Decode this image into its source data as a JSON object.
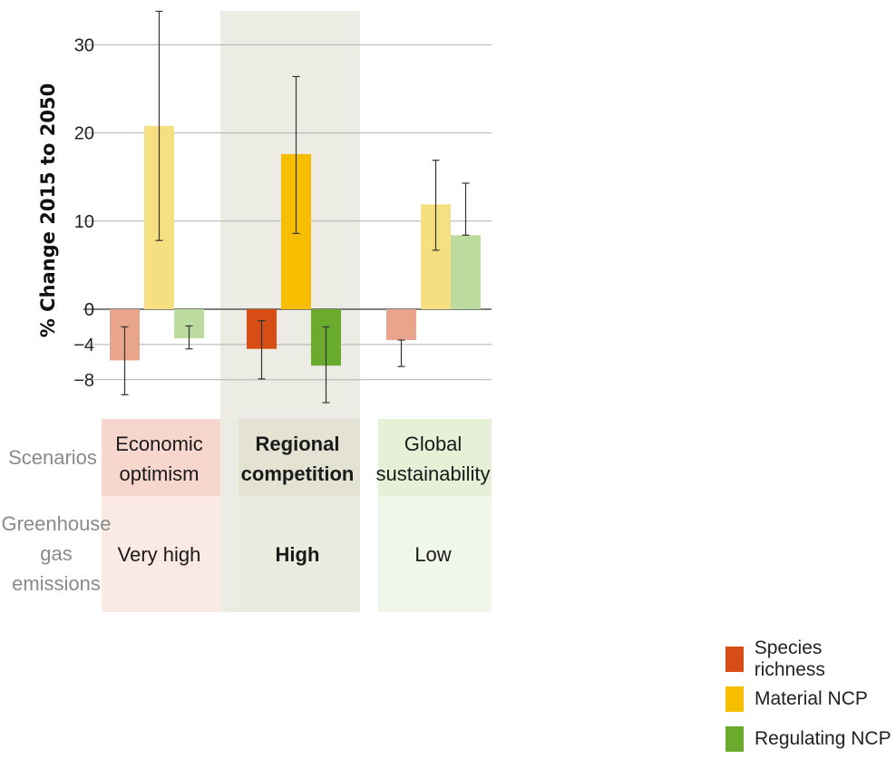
{
  "chart_data": {
    "type": "bar",
    "ylabel": "% Change 2015 to 2050",
    "ylim": [
      -11,
      35
    ],
    "yticks": [
      30,
      20,
      10,
      0,
      -4,
      -8
    ],
    "grid": true,
    "scenarios": [
      "Economic optimism",
      "Regional competition",
      "Global sustainability"
    ],
    "highlighted_scenario": "Regional competition",
    "row_labels": {
      "scenarios": "Scenarios",
      "emissions": "Greenhouse gas emissions"
    },
    "scenario_lines": [
      [
        "Economic",
        "optimism"
      ],
      [
        "Regional",
        "competition"
      ],
      [
        "Global",
        "sustainability"
      ]
    ],
    "emissions_row_lines": [
      "Greenhouse",
      "gas",
      "emissions"
    ],
    "emissions": [
      "Very high",
      "High",
      "Low"
    ],
    "series": [
      {
        "name": "Species richness",
        "color": "#d64d16",
        "light_color": "#e9a58c",
        "values": [
          -5.8,
          -4.5,
          -3.5
        ],
        "err_low": [
          -9.7,
          -7.9,
          -6.5
        ],
        "err_high": [
          -2.0,
          -1.3,
          -3.5
        ]
      },
      {
        "name": "Material NCP",
        "color": "#f7bd00",
        "light_color": "#f6df80",
        "values": [
          20.8,
          17.6,
          11.9
        ],
        "err_low": [
          7.8,
          8.6,
          6.7
        ],
        "err_high": [
          33.8,
          26.4,
          16.9
        ]
      },
      {
        "name": "Regulating NCP",
        "color": "#6aab2e",
        "light_color": "#bcdb9f",
        "values": [
          -3.3,
          -6.4,
          8.4
        ],
        "err_low": [
          -4.5,
          -10.6,
          8.4
        ],
        "err_high": [
          -1.9,
          -2.0,
          14.3
        ]
      }
    ],
    "colors": {
      "highlight_band": "#ecece4",
      "scenario_bg": [
        "#f7d7cd",
        "#e3e2d3",
        "#e6f0d6"
      ],
      "emission_bg": [
        "#fbeae3",
        "#ebebdf",
        "#f0f6e8"
      ],
      "grid": "#b0b0b0",
      "zero_line": "#555555",
      "error_bar": "#333333"
    }
  }
}
